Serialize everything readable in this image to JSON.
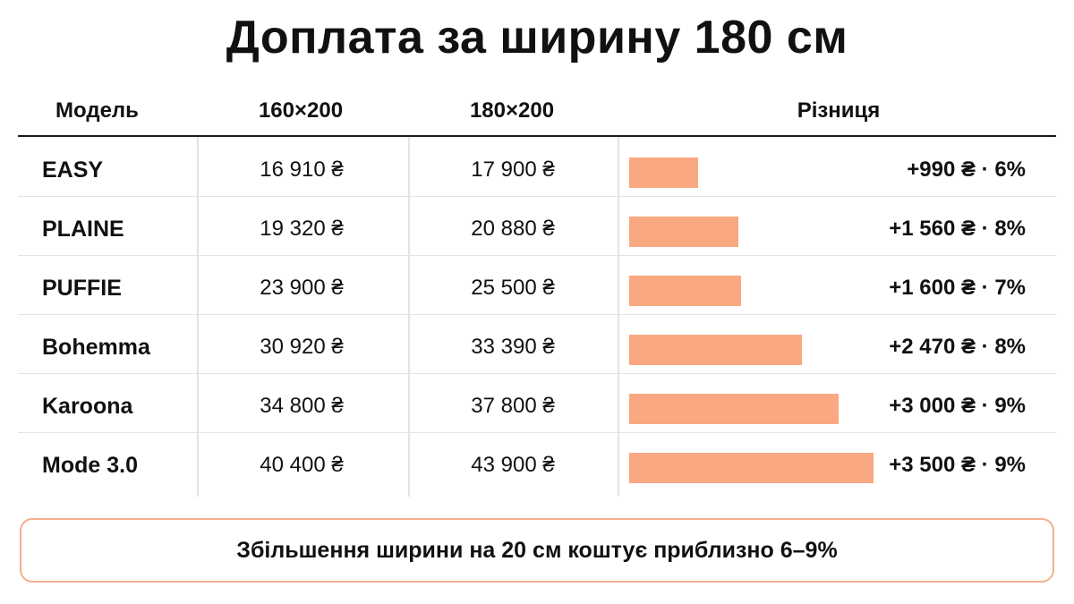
{
  "title": "Доплата за ширину 180 см",
  "columns": {
    "model": "Модель",
    "size_a": "160×200",
    "size_b": "180×200",
    "difference": "Різниця"
  },
  "rows": [
    {
      "model": "EASY",
      "price_a": "16 910 ₴",
      "price_b": "17 900 ₴",
      "diff_label": "+990 ₴ · 6%"
    },
    {
      "model": "PLAINE",
      "price_a": "19 320 ₴",
      "price_b": "20 880 ₴",
      "diff_label": "+1 560 ₴ · 8%"
    },
    {
      "model": "PUFFIE",
      "price_a": "23 900 ₴",
      "price_b": "25 500 ₴",
      "diff_label": "+1 600 ₴ · 7%"
    },
    {
      "model": "Bohemma",
      "price_a": "30 920 ₴",
      "price_b": "33 390 ₴",
      "diff_label": "+2 470 ₴ · 8%"
    },
    {
      "model": "Karoona",
      "price_a": "34 800 ₴",
      "price_b": "37 800 ₴",
      "diff_label": "+3 000 ₴ · 9%"
    },
    {
      "model": "Mode 3.0",
      "price_a": "40 400 ₴",
      "price_b": "43 900 ₴",
      "diff_label": "+3 500 ₴ · 9%"
    }
  ],
  "note": "Збільшення ширини на 20 см коштує приблизно 6–9%",
  "colors": {
    "bar": "#f9a882",
    "note_border": "#f2b08f"
  },
  "chart_data": {
    "type": "bar",
    "orientation": "horizontal",
    "title": "Доплата за ширину 180 см",
    "categories": [
      "EASY",
      "PLAINE",
      "PUFFIE",
      "Bohemma",
      "Karoona",
      "Mode 3.0"
    ],
    "series": [
      {
        "name": "160×200",
        "values": [
          16910,
          19320,
          23900,
          30920,
          34800,
          40400
        ]
      },
      {
        "name": "180×200",
        "values": [
          17900,
          20880,
          25500,
          33390,
          37800,
          43900
        ]
      },
      {
        "name": "Різниця",
        "values": [
          990,
          1560,
          1600,
          2470,
          3000,
          3500
        ]
      }
    ],
    "percent_difference": [
      6,
      8,
      7,
      8,
      9,
      9
    ],
    "unit": "₴",
    "xlim": [
      0,
      3500
    ]
  }
}
